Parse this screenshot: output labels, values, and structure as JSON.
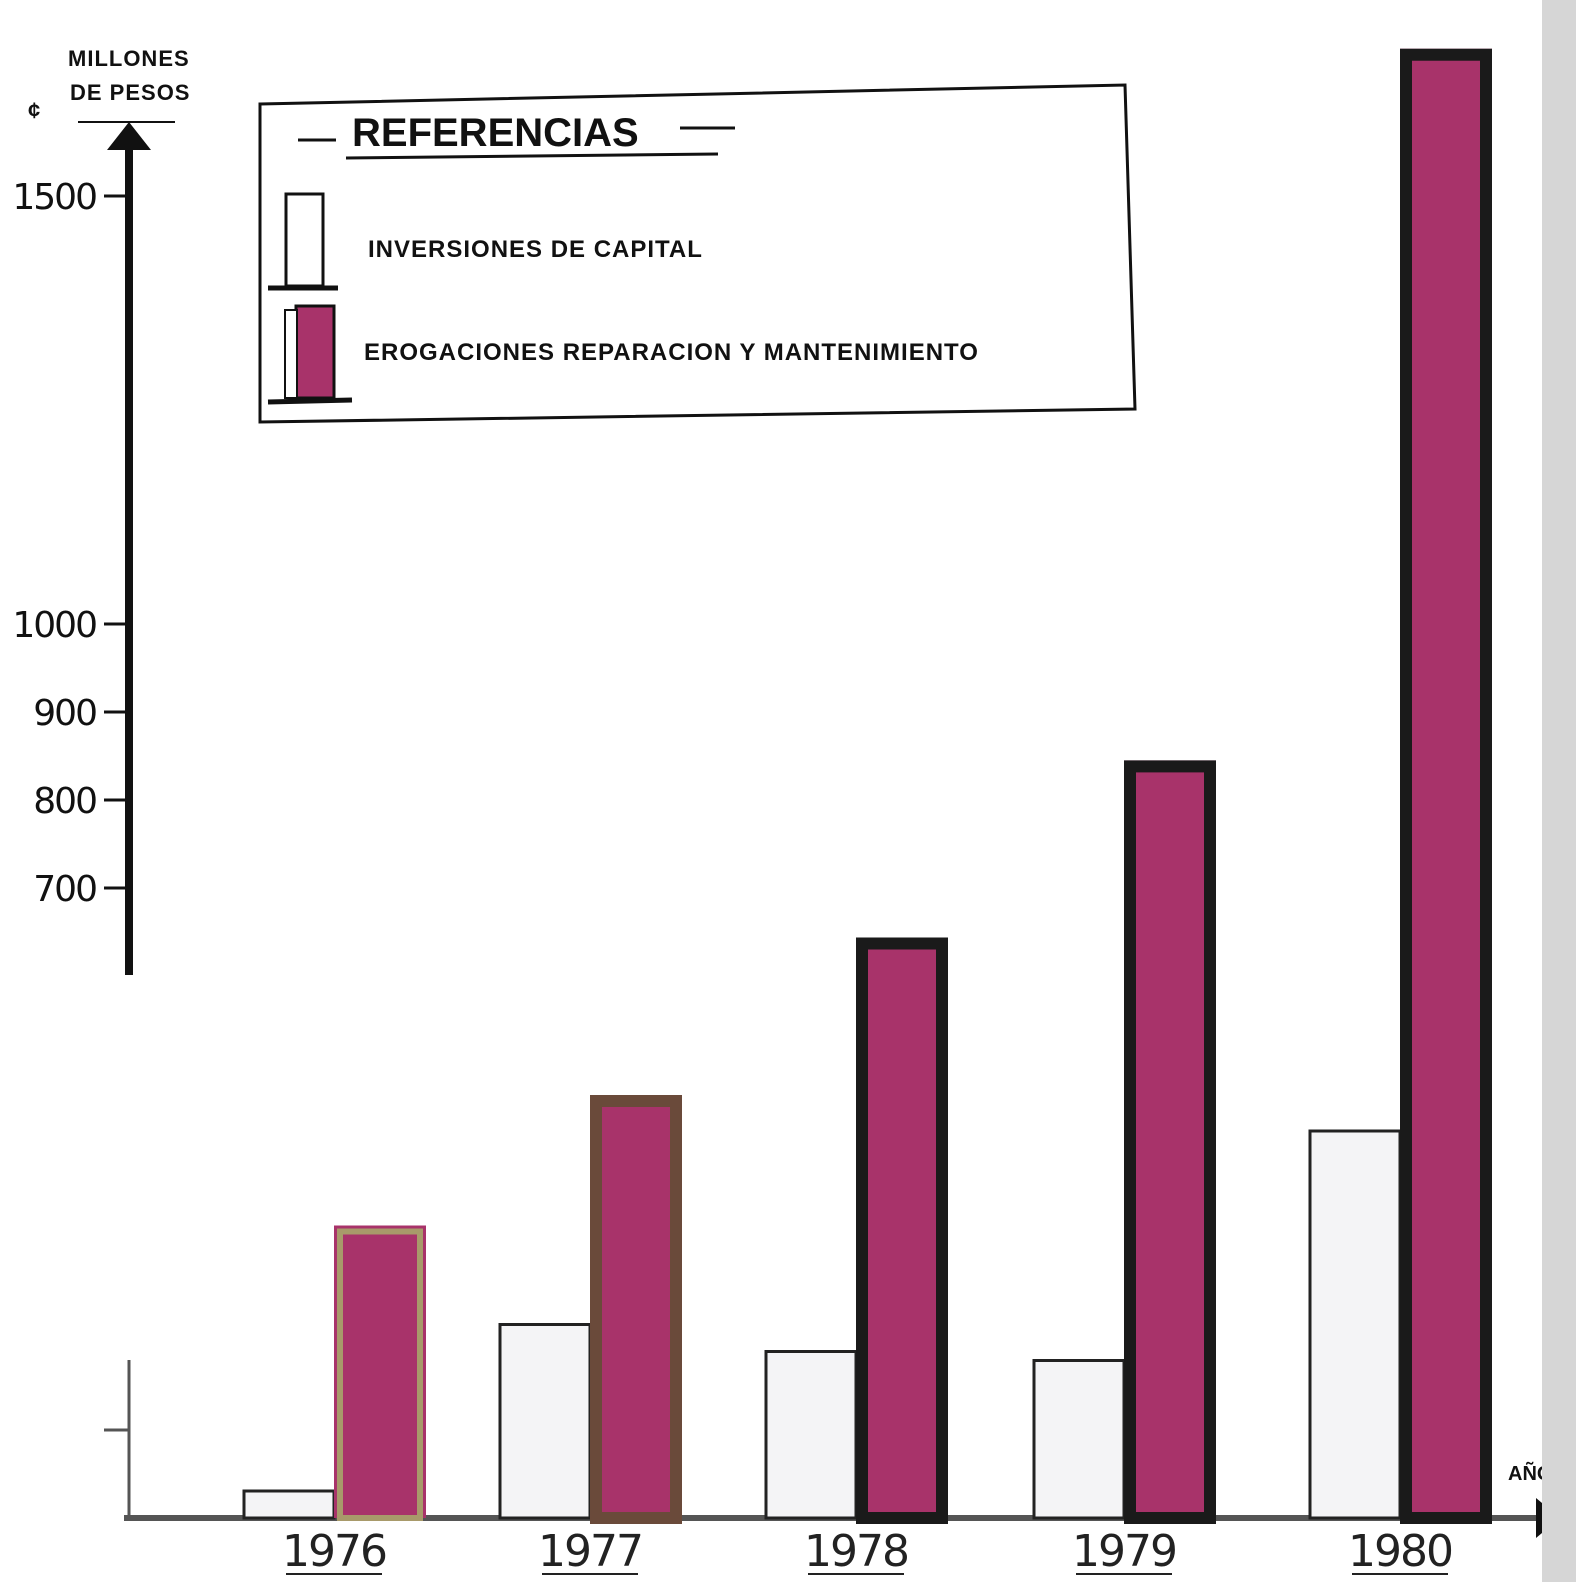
{
  "chart_data": {
    "type": "bar",
    "ylabel_line1": "MILLONES",
    "ylabel_line2": "DE PESOS",
    "y_symbol": "¢",
    "xlabel": "AÑOS",
    "categories": [
      "1976",
      "1977",
      "1978",
      "1979",
      "1980"
    ],
    "yticks": [
      700,
      800,
      900,
      1000,
      1500
    ],
    "series": [
      {
        "name": "INVERSIONES DE CAPITAL",
        "color": "#f4f4f6",
        "values": [
          30,
          215,
          185,
          175,
          430
        ]
      },
      {
        "name": "EROGACIONES REPARACION Y MANTENIMIENTO",
        "color": "#a8336a",
        "values": [
          325,
          470,
          645,
          845,
          1735
        ]
      }
    ],
    "legend": {
      "title": "REFERENCIAS",
      "position": "top-left"
    }
  },
  "colors": {
    "axis": "#111111",
    "bar_outline": "#1a1a1a",
    "magenta": "#a8336a"
  }
}
